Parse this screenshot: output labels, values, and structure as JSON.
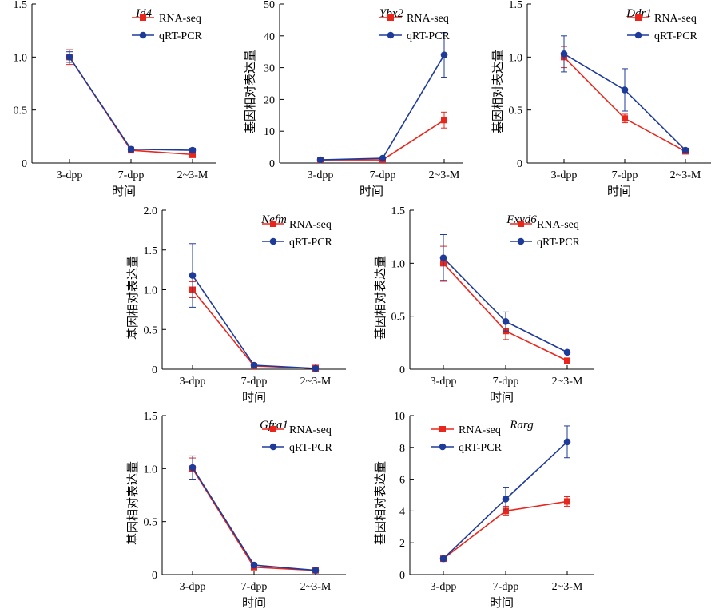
{
  "figure": {
    "legend_labels": [
      "RNA-seq",
      "qRT-PCR"
    ],
    "colors": {
      "RNA-seq": "#e8261c",
      "qRT-PCR": "#1f3b9a"
    }
  },
  "chart_data": [
    {
      "type": "line",
      "title": "Id4",
      "categories": [
        "3-dpp",
        "7-dpp",
        "2~3-M"
      ],
      "xlabel": "时间",
      "ylabel": "",
      "ylim": [
        0,
        1.5
      ],
      "yticks": [
        "0",
        "0.5",
        "1.0",
        "1.5"
      ],
      "legend_position": "top-right",
      "series": [
        {
          "name": "RNA-seq",
          "values": [
            1.0,
            0.12,
            0.08
          ],
          "errors": [
            0.07,
            0.02,
            0.03
          ]
        },
        {
          "name": "qRT-PCR",
          "values": [
            1.0,
            0.13,
            0.12
          ],
          "errors": [
            0.05,
            0.02,
            0.02
          ]
        }
      ]
    },
    {
      "type": "line",
      "title": "Ybx2",
      "categories": [
        "3-dpp",
        "7-dpp",
        "2~3-M"
      ],
      "xlabel": "时间",
      "ylabel": "基因相对表达量",
      "ylim": [
        0,
        50
      ],
      "yticks": [
        "0",
        "10",
        "20",
        "30",
        "40",
        "50"
      ],
      "legend_position": "top-right",
      "series": [
        {
          "name": "RNA-seq",
          "values": [
            1.0,
            1.0,
            13.5
          ],
          "errors": [
            0.3,
            0.2,
            2.5
          ]
        },
        {
          "name": "qRT-PCR",
          "values": [
            1.0,
            1.5,
            34.0
          ],
          "errors": [
            0.2,
            0.3,
            7.0
          ]
        }
      ]
    },
    {
      "type": "line",
      "title": "Ddr1",
      "categories": [
        "3-dpp",
        "7-dpp",
        "2~3-M"
      ],
      "xlabel": "时间",
      "ylabel": "基因相对表达量",
      "ylim": [
        0,
        1.5
      ],
      "yticks": [
        "0",
        "0.5",
        "1.0",
        "1.5"
      ],
      "legend_position": "top-right",
      "series": [
        {
          "name": "RNA-seq",
          "values": [
            1.0,
            0.42,
            0.11
          ],
          "errors": [
            0.1,
            0.04,
            0.02
          ]
        },
        {
          "name": "qRT-PCR",
          "values": [
            1.03,
            0.69,
            0.12
          ],
          "errors": [
            0.17,
            0.2,
            0.02
          ]
        }
      ]
    },
    {
      "type": "line",
      "title": "Nefm",
      "categories": [
        "3-dpp",
        "7-dpp",
        "2~3-M"
      ],
      "xlabel": "时间",
      "ylabel": "基因相对表达量",
      "ylim": [
        0,
        2.0
      ],
      "yticks": [
        "0",
        "0.5",
        "1.0",
        "1.5",
        "2.0"
      ],
      "legend_position": "top-right",
      "series": [
        {
          "name": "RNA-seq",
          "values": [
            1.0,
            0.04,
            0.01
          ],
          "errors": [
            0.1,
            0.01,
            0.05
          ]
        },
        {
          "name": "qRT-PCR",
          "values": [
            1.18,
            0.05,
            0.01
          ],
          "errors": [
            0.4,
            0.01,
            0.02
          ]
        }
      ]
    },
    {
      "type": "line",
      "title": "Fxyd6",
      "categories": [
        "3-dpp",
        "7-dpp",
        "2~3-M"
      ],
      "xlabel": "时间",
      "ylabel": "基因相对表达量",
      "ylim": [
        0,
        1.5
      ],
      "yticks": [
        "0",
        "0.5",
        "1.0",
        "1.5"
      ],
      "legend_position": "top-right",
      "series": [
        {
          "name": "RNA-seq",
          "values": [
            1.0,
            0.36,
            0.08
          ],
          "errors": [
            0.16,
            0.08,
            0.01
          ]
        },
        {
          "name": "qRT-PCR",
          "values": [
            1.05,
            0.45,
            0.16
          ],
          "errors": [
            0.22,
            0.09,
            0.01
          ]
        }
      ]
    },
    {
      "type": "line",
      "title": "Gfra1",
      "categories": [
        "3-dpp",
        "7-dpp",
        "2~3-M"
      ],
      "xlabel": "时间",
      "ylabel": "基因相对表达量",
      "ylim": [
        0,
        1.5
      ],
      "yticks": [
        "0",
        "0.5",
        "1.0",
        "1.5"
      ],
      "legend_position": "top-right",
      "series": [
        {
          "name": "RNA-seq",
          "values": [
            1.0,
            0.07,
            0.04
          ],
          "errors": [
            0.1,
            0.01,
            0.01
          ]
        },
        {
          "name": "qRT-PCR",
          "values": [
            1.01,
            0.09,
            0.04
          ],
          "errors": [
            0.11,
            0.02,
            0.01
          ]
        }
      ]
    },
    {
      "type": "line",
      "title": "Rarg",
      "categories": [
        "3-dpp",
        "7-dpp",
        "2~3-M"
      ],
      "xlabel": "时间",
      "ylabel": "基因相对表达量",
      "ylim": [
        0,
        10
      ],
      "yticks": [
        "0",
        "2",
        "4",
        "6",
        "8",
        "10"
      ],
      "legend_position": "top-left",
      "series": [
        {
          "name": "RNA-seq",
          "values": [
            1.0,
            4.0,
            4.6
          ],
          "errors": [
            0.1,
            0.3,
            0.3
          ]
        },
        {
          "name": "qRT-PCR",
          "values": [
            1.0,
            4.75,
            8.35
          ],
          "errors": [
            0.1,
            0.75,
            1.0
          ]
        }
      ]
    }
  ]
}
